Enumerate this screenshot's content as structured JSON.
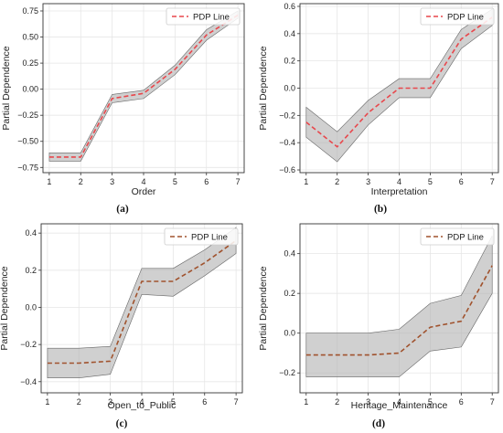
{
  "legend_label": "PDP Line",
  "ylabel": "Partial Dependence",
  "chart_data": [
    {
      "type": "line",
      "caption": "(a)",
      "xlabel": "Order",
      "ylabel": "Partial Dependence",
      "legend_position": "top-right",
      "grid": true,
      "line_color": "#e8474c",
      "x": [
        1,
        2,
        3,
        4,
        5,
        6,
        7
      ],
      "xticks": [
        1,
        2,
        3,
        4,
        5,
        6,
        7
      ],
      "xlim": [
        0.8,
        7.2
      ],
      "ylim": [
        -0.8,
        0.82
      ],
      "yticks": [
        -0.75,
        -0.5,
        -0.25,
        0.0,
        0.25,
        0.5,
        0.75
      ],
      "ytick_labels": [
        "−0.75",
        "−0.50",
        "−0.25",
        "0.00",
        "0.25",
        "0.50",
        "0.75"
      ],
      "series": [
        {
          "name": "PDP Line",
          "values": [
            -0.65,
            -0.65,
            -0.09,
            -0.04,
            0.19,
            0.52,
            0.71
          ],
          "band_lower": [
            -0.69,
            -0.69,
            -0.13,
            -0.09,
            0.14,
            0.47,
            0.68
          ],
          "band_upper": [
            -0.61,
            -0.61,
            -0.05,
            -0.01,
            0.23,
            0.57,
            0.75
          ]
        }
      ]
    },
    {
      "type": "line",
      "caption": "(b)",
      "xlabel": "Interpretation",
      "ylabel": "Partial Dependence",
      "legend_position": "top-right",
      "grid": true,
      "line_color": "#e8474c",
      "x": [
        1,
        2,
        3,
        4,
        5,
        6,
        7
      ],
      "xticks": [
        1,
        2,
        3,
        4,
        5,
        6,
        7
      ],
      "xlim": [
        0.8,
        7.2
      ],
      "ylim": [
        -0.62,
        0.62
      ],
      "yticks": [
        -0.6,
        -0.4,
        -0.2,
        0.0,
        0.2,
        0.4,
        0.6
      ],
      "ytick_labels": [
        "−0.6",
        "−0.4",
        "−0.2",
        "0.0",
        "0.2",
        "0.4",
        "0.6"
      ],
      "series": [
        {
          "name": "PDP Line",
          "values": [
            -0.25,
            -0.43,
            -0.18,
            0.0,
            0.0,
            0.36,
            0.52
          ],
          "band_lower": [
            -0.36,
            -0.54,
            -0.27,
            -0.07,
            -0.07,
            0.29,
            0.46
          ],
          "band_upper": [
            -0.14,
            -0.32,
            -0.09,
            0.07,
            0.07,
            0.43,
            0.58
          ]
        }
      ]
    },
    {
      "type": "line",
      "caption": "(c)",
      "xlabel": "Open_to_Public",
      "ylabel": "Partial Dependence",
      "legend_position": "top-right",
      "grid": true,
      "line_color": "#a0522d",
      "x": [
        1,
        2,
        3,
        4,
        5,
        6,
        7
      ],
      "xticks": [
        1,
        2,
        3,
        4,
        5,
        6,
        7
      ],
      "xlim": [
        0.8,
        7.2
      ],
      "ylim": [
        -0.46,
        0.45
      ],
      "yticks": [
        -0.4,
        -0.2,
        0.0,
        0.2,
        0.4
      ],
      "ytick_labels": [
        "−0.4",
        "−0.2",
        "0.0",
        "0.2",
        "0.4"
      ],
      "series": [
        {
          "name": "PDP Line",
          "values": [
            -0.3,
            -0.3,
            -0.29,
            0.14,
            0.14,
            0.24,
            0.36
          ],
          "band_lower": [
            -0.38,
            -0.38,
            -0.36,
            0.07,
            0.06,
            0.17,
            0.29
          ],
          "band_upper": [
            -0.22,
            -0.22,
            -0.21,
            0.21,
            0.21,
            0.31,
            0.43
          ]
        }
      ]
    },
    {
      "type": "line",
      "caption": "(d)",
      "xlabel": "Heritage_Maintenance",
      "ylabel": "Partial Dependence",
      "legend_position": "top-right",
      "grid": true,
      "line_color": "#a0522d",
      "x": [
        1,
        2,
        3,
        4,
        5,
        6,
        7
      ],
      "xticks": [
        1,
        2,
        3,
        4,
        5,
        6,
        7
      ],
      "xlim": [
        0.8,
        7.2
      ],
      "ylim": [
        -0.3,
        0.55
      ],
      "yticks": [
        -0.2,
        0.0,
        0.2,
        0.4
      ],
      "ytick_labels": [
        "−0.2",
        "0.0",
        "0.2",
        "0.4"
      ],
      "series": [
        {
          "name": "PDP Line",
          "values": [
            -0.11,
            -0.11,
            -0.11,
            -0.1,
            0.03,
            0.06,
            0.34
          ],
          "band_lower": [
            -0.22,
            -0.22,
            -0.22,
            -0.22,
            -0.09,
            -0.07,
            0.2
          ],
          "band_upper": [
            0.0,
            0.0,
            0.0,
            0.02,
            0.15,
            0.19,
            0.49
          ]
        }
      ]
    }
  ]
}
